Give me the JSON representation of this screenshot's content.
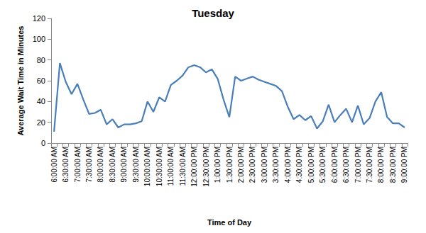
{
  "chart_data": {
    "type": "line",
    "title": "Tuesday",
    "x_label": "Time of Day",
    "y_label": "Average Wait Time in Minutes",
    "categories": [
      "6:00:00 AM",
      null,
      "6:30:00 AM",
      null,
      "7:00:00 AM",
      null,
      "7:30:00 AM",
      null,
      "8:00:00 AM",
      null,
      "8:30:00 AM",
      null,
      "9:00:00 AM",
      null,
      "9:30:00 AM",
      null,
      "10:00:00 AM",
      null,
      "10:30:00 AM",
      null,
      "11:00:00 AM",
      null,
      "11:30:00 AM",
      null,
      "12:00:00 PM",
      null,
      "12:30:00 PM",
      null,
      "1:00:00 PM",
      null,
      "1:30:00 PM",
      null,
      "2:00:00 PM",
      null,
      "2:30:00 PM",
      null,
      "3:00:00 PM",
      null,
      "3:30:00 PM",
      null,
      "4:00:00 PM",
      null,
      "4:30:00 PM",
      null,
      "5:00:00 PM",
      null,
      "5:30:00 PM",
      null,
      "6:00:00 PM",
      null,
      "6:30:00 PM",
      null,
      "7:00:00 PM",
      null,
      "7:30:00 PM",
      null,
      "8:00:00 PM",
      null,
      "8:30:00 PM",
      null,
      "9:00:00 PM"
    ],
    "values": [
      11,
      77,
      59,
      47,
      57,
      42,
      28,
      29,
      32,
      18,
      23,
      15,
      18,
      18,
      19,
      21,
      40,
      30,
      44,
      40,
      56,
      60,
      65,
      73,
      75,
      73,
      68,
      71,
      62,
      42,
      25,
      64,
      60,
      62,
      64,
      61,
      59,
      57,
      55,
      50,
      35,
      23,
      27,
      22,
      26,
      14,
      21,
      37,
      20,
      27,
      33,
      20,
      36,
      18,
      24,
      40,
      49,
      25,
      19,
      19,
      15
    ],
    "color": "#4a7ebb",
    "ylim": [
      0,
      120
    ],
    "yticks": [
      0,
      20,
      40,
      60,
      80,
      100,
      120
    ],
    "grid": false
  }
}
